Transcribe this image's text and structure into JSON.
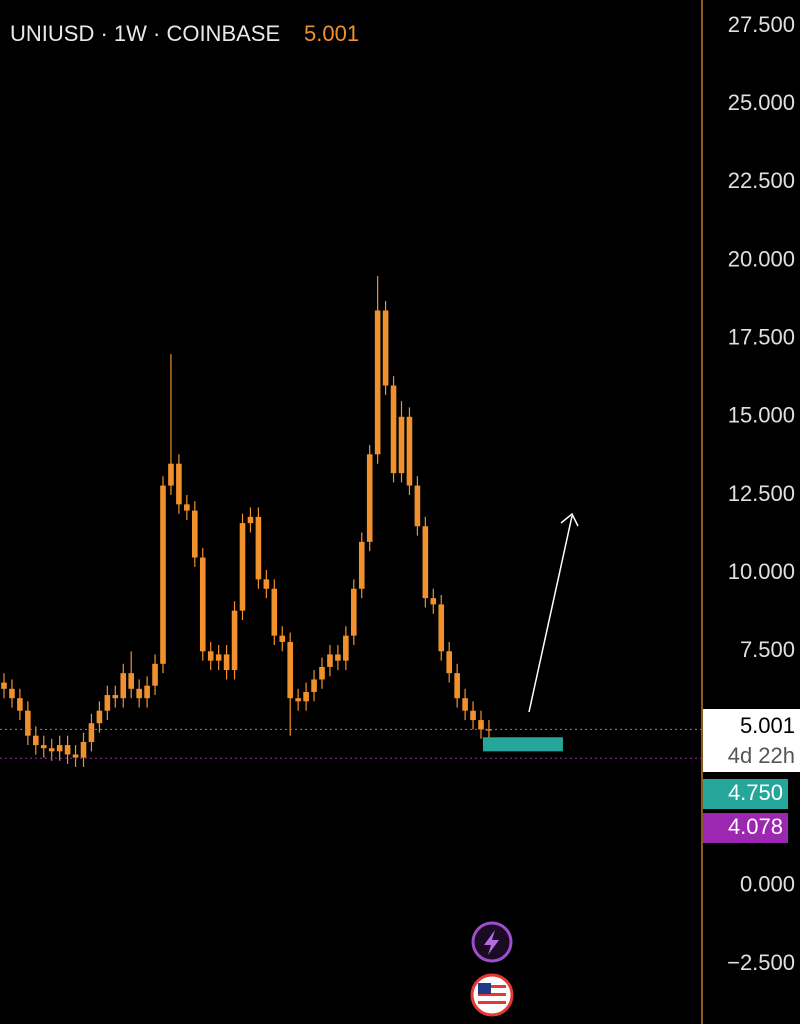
{
  "chart_data": {
    "type": "candlestick",
    "title": "UNIUSD · 1W · COINBASE",
    "color": "#f0912e",
    "open": [
      6.5,
      6.3,
      6.0,
      5.6,
      4.8,
      4.5,
      4.4,
      4.3,
      4.5,
      4.2,
      4.1,
      4.6,
      5.2,
      5.6,
      6.1,
      6.0,
      6.8,
      6.3,
      6.0,
      6.4,
      7.1,
      12.8,
      13.5,
      12.2,
      12.0,
      10.5,
      7.5,
      7.2,
      7.4,
      6.9,
      8.8,
      11.6,
      11.8,
      9.8,
      9.5,
      8.0,
      7.8,
      6.0,
      5.9,
      6.2,
      6.6,
      7.0,
      7.4,
      7.2,
      8.0,
      9.5,
      11.0,
      13.8,
      18.4,
      16.0,
      13.2,
      15.0,
      12.8,
      11.5,
      9.2,
      9.0,
      7.5,
      6.8,
      6.0,
      5.6,
      5.3,
      5.0
    ],
    "high": [
      6.8,
      6.6,
      6.3,
      5.9,
      5.1,
      4.8,
      4.7,
      4.8,
      4.8,
      4.5,
      4.9,
      5.5,
      5.9,
      6.4,
      6.4,
      7.1,
      7.5,
      6.6,
      6.7,
      7.4,
      13.1,
      17.0,
      13.8,
      12.5,
      12.3,
      10.8,
      7.8,
      7.7,
      7.7,
      9.1,
      11.9,
      12.1,
      12.1,
      10.1,
      9.8,
      8.3,
      8.1,
      6.3,
      6.5,
      6.9,
      7.3,
      7.7,
      7.7,
      8.3,
      9.8,
      11.3,
      14.1,
      19.5,
      18.7,
      16.3,
      15.5,
      15.3,
      13.1,
      11.8,
      9.5,
      9.3,
      7.8,
      7.1,
      6.3,
      5.9,
      5.6,
      5.3
    ],
    "low": [
      6.0,
      5.7,
      5.3,
      4.5,
      4.2,
      4.1,
      4.0,
      4.0,
      3.9,
      3.8,
      3.8,
      4.3,
      4.9,
      5.3,
      5.7,
      5.7,
      6.0,
      5.7,
      5.7,
      6.1,
      6.8,
      12.5,
      11.9,
      11.7,
      10.2,
      7.2,
      6.9,
      6.9,
      6.6,
      6.6,
      8.5,
      11.3,
      9.5,
      9.2,
      7.7,
      7.5,
      4.8,
      5.6,
      5.6,
      5.9,
      6.3,
      6.7,
      6.9,
      6.9,
      7.7,
      9.2,
      10.7,
      13.5,
      15.7,
      12.9,
      12.9,
      12.5,
      11.2,
      8.9,
      8.7,
      7.2,
      6.5,
      5.7,
      5.3,
      5.0,
      4.7,
      4.7
    ],
    "close": [
      6.3,
      6.0,
      5.6,
      4.8,
      4.5,
      4.4,
      4.3,
      4.5,
      4.2,
      4.1,
      4.6,
      5.2,
      5.6,
      6.1,
      6.0,
      6.8,
      6.3,
      6.0,
      6.4,
      7.1,
      12.8,
      13.5,
      12.2,
      12.0,
      10.5,
      7.5,
      7.2,
      7.4,
      6.9,
      8.8,
      11.6,
      11.8,
      9.8,
      9.5,
      8.0,
      7.8,
      6.0,
      5.9,
      6.2,
      6.6,
      7.0,
      7.4,
      7.2,
      8.0,
      9.5,
      11.0,
      13.8,
      18.4,
      16.0,
      13.2,
      15.0,
      12.8,
      11.5,
      9.2,
      9.0,
      7.5,
      6.8,
      6.0,
      5.6,
      5.3,
      5.0,
      5.001
    ],
    "ylim": [
      -4.42,
      28.33
    ],
    "yticks": [
      {
        "value": 27.5,
        "label": "27.500"
      },
      {
        "value": 25,
        "label": "25.000"
      },
      {
        "value": 22.5,
        "label": "22.500"
      },
      {
        "value": 20,
        "label": "20.000"
      },
      {
        "value": 17.5,
        "label": "17.500"
      },
      {
        "value": 15,
        "label": "15.000"
      },
      {
        "value": 12.5,
        "label": "12.500"
      },
      {
        "value": 10,
        "label": "10.000"
      },
      {
        "value": 7.5,
        "label": "7.500"
      },
      {
        "value": 0,
        "label": "0.000"
      },
      {
        "value": -2.5,
        "label": "−2.500"
      }
    ],
    "last_price": {
      "value": 5.001,
      "label": "5.001"
    },
    "countdown": "4d 22h",
    "levels": [
      {
        "value": 4.75,
        "label": "4.750",
        "color": "#26a69a"
      },
      {
        "value": 4.078,
        "label": "4.078",
        "color": "#9c27b0"
      }
    ],
    "zone": [
      4.3,
      4.75
    ]
  }
}
